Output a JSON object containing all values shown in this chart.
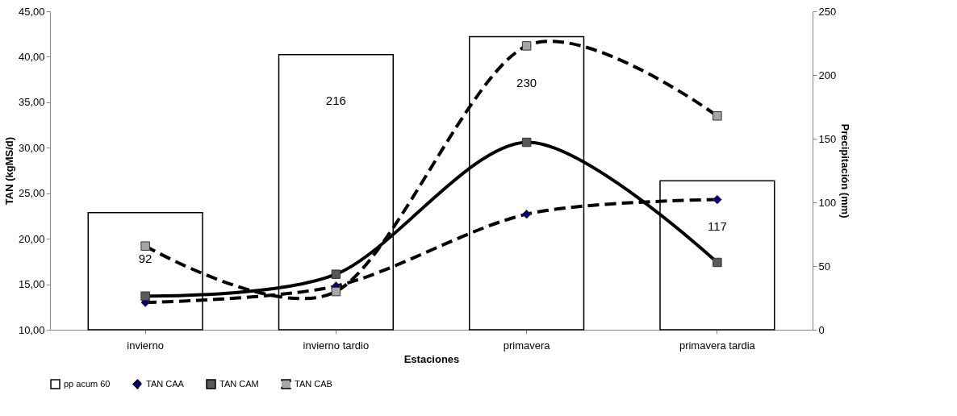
{
  "chart_data": {
    "type": "line",
    "xlabel": "Estaciones",
    "ylabel": "TAN (kgMS/d)",
    "y2label": "Precipitación (mm)",
    "categories": [
      "invierno",
      "invierno tardio",
      "primavera",
      "primavera tardia"
    ],
    "ylim": [
      10,
      45
    ],
    "yticks": [
      {
        "value": 10,
        "label": "10,00"
      },
      {
        "value": 15,
        "label": "15,00"
      },
      {
        "value": 20,
        "label": "20,00"
      },
      {
        "value": 25,
        "label": "25,00"
      },
      {
        "value": 30,
        "label": "30,00"
      },
      {
        "value": 35,
        "label": "35,00"
      },
      {
        "value": 40,
        "label": "40,00"
      },
      {
        "value": 45,
        "label": "45,00"
      }
    ],
    "y2lim": [
      0,
      250
    ],
    "y2ticks": [
      0,
      50,
      100,
      150,
      200,
      250
    ],
    "legend": "bottom",
    "grid": false,
    "series": [
      {
        "name": "pp acum 60",
        "type": "bar",
        "axis": "y2",
        "color": "#ffffff",
        "values": [
          92,
          216,
          230,
          117
        ],
        "value_labels": [
          "92",
          "216",
          "230",
          "117"
        ]
      },
      {
        "name": "TAN CAA",
        "color": "#000080",
        "marker": "diamond",
        "line_style": "dashed",
        "values": [
          13.0,
          14.8,
          22.7,
          24.3
        ]
      },
      {
        "name": "TAN CAM",
        "color": "#595959",
        "marker": "square",
        "line_style": "solid",
        "values": [
          13.7,
          16.1,
          30.6,
          17.4
        ]
      },
      {
        "name": "TAN CAB",
        "color": "#a6a6a6",
        "marker": "square",
        "line_style": "dashed",
        "values": [
          19.2,
          14.2,
          41.2,
          33.5
        ]
      }
    ]
  }
}
